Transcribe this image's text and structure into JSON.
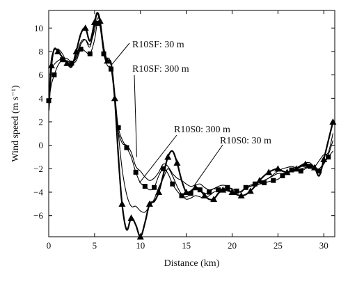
{
  "chart_data": {
    "type": "line",
    "title": "",
    "xlabel": "Distance (km)",
    "ylabel": "Wind speed (m s⁻¹)",
    "xlim": [
      0,
      31.2
    ],
    "ylim": [
      -7.8,
      11.5
    ],
    "xticks": [
      0,
      5,
      10,
      15,
      20,
      25,
      30
    ],
    "yticks": [
      -6,
      -4,
      -2,
      0,
      2,
      4,
      6,
      8,
      10
    ],
    "grid": false,
    "legend": "none",
    "series": [
      {
        "name": "R10SF: 30 m",
        "color": "#000000",
        "width": 1.1,
        "marker": "none",
        "x": [
          0,
          0.2,
          0.5,
          1,
          1.5,
          2,
          2.5,
          3,
          3.5,
          4,
          4.5,
          5,
          5.3,
          5.6,
          6,
          6.3,
          6.6,
          7,
          7.2,
          7.5,
          8,
          8.5,
          9,
          9.5,
          10,
          10.5,
          11,
          11.5,
          12,
          12.5,
          13,
          13.5,
          14,
          14.5,
          15,
          15.5,
          16,
          16.5,
          17,
          17.5,
          18,
          18.5,
          19,
          19.5,
          20,
          20.5,
          21,
          21.5,
          22,
          22.5,
          23,
          23.5,
          24,
          24.5,
          25,
          25.5,
          26,
          26.5,
          27,
          27.5,
          28,
          28.5,
          29,
          29.5,
          30,
          30.5,
          31
        ],
        "y": [
          3.5,
          6.8,
          8.0,
          8.2,
          7.8,
          7.0,
          6.8,
          7.6,
          8.8,
          9.0,
          8.4,
          10.2,
          11.2,
          10.3,
          8.0,
          7.2,
          7.4,
          6.0,
          4.0,
          1.5,
          0.2,
          0.0,
          -0.6,
          -1.8,
          -2.2,
          -2.7,
          -3.0,
          -2.8,
          -2.3,
          -1.6,
          -1.8,
          -2.4,
          -2.8,
          -3.0,
          -3.3,
          -3.5,
          -3.4,
          -3.3,
          -3.6,
          -3.8,
          -3.7,
          -3.5,
          -3.4,
          -3.5,
          -3.8,
          -4.0,
          -3.9,
          -3.6,
          -3.5,
          -3.4,
          -3.3,
          -3.0,
          -2.8,
          -2.5,
          -2.2,
          -2.0,
          -1.9,
          -1.8,
          -1.9,
          -1.7,
          -1.5,
          -1.5,
          -1.8,
          -1.3,
          -0.8,
          -0.6,
          1.0
        ]
      },
      {
        "name": "R10SF: 300 m",
        "color": "#000000",
        "width": 1.1,
        "marker": "square",
        "x": [
          0,
          0.3,
          0.6,
          1,
          1.5,
          2,
          2.5,
          3,
          3.5,
          4,
          4.5,
          5,
          5.3,
          5.6,
          6,
          6.4,
          6.8,
          7.2,
          7.6,
          8,
          8.5,
          9,
          9.5,
          10,
          10.5,
          11,
          11.5,
          12,
          12.5,
          13,
          13.5,
          14,
          14.5,
          15,
          15.5,
          16,
          16.5,
          17,
          17.5,
          18,
          18.5,
          19,
          19.5,
          20,
          20.5,
          21,
          21.5,
          22,
          22.5,
          23,
          23.5,
          24,
          24.5,
          25,
          25.5,
          26,
          26.5,
          27,
          27.5,
          28,
          28.5,
          29,
          29.5,
          30,
          30.5,
          31
        ],
        "y": [
          3.8,
          5.2,
          6.0,
          6.8,
          7.3,
          7.2,
          7.0,
          7.2,
          8.2,
          8.0,
          7.8,
          9.0,
          10.4,
          10.1,
          7.8,
          6.8,
          6.5,
          4.0,
          1.5,
          0.5,
          -0.2,
          -1.0,
          -2.3,
          -3.2,
          -3.5,
          -3.8,
          -3.6,
          -2.6,
          -2.0,
          -2.4,
          -3.3,
          -3.9,
          -4.3,
          -4.4,
          -4.1,
          -3.6,
          -3.8,
          -4.1,
          -4.0,
          -3.7,
          -3.8,
          -3.7,
          -3.6,
          -3.7,
          -3.9,
          -4.0,
          -3.6,
          -3.4,
          -3.3,
          -3.3,
          -3.2,
          -3.1,
          -3.0,
          -2.9,
          -2.6,
          -2.3,
          -2.1,
          -2.0,
          -2.2,
          -2.0,
          -1.8,
          -1.9,
          -2.2,
          -1.6,
          -1.0,
          -0.5
        ]
      },
      {
        "name": "R10S0: 300 m",
        "color": "#000000",
        "width": 1.1,
        "marker": "none",
        "x": [
          0,
          0.3,
          0.6,
          1,
          1.5,
          2,
          2.5,
          3,
          3.5,
          4,
          4.5,
          5,
          5.3,
          5.6,
          6,
          6.4,
          6.8,
          7.2,
          7.6,
          8,
          8.5,
          9,
          9.5,
          10,
          10.5,
          11,
          11.5,
          12,
          12.5,
          13,
          13.5,
          14,
          14.5,
          15,
          15.5,
          16,
          16.5,
          17,
          17.5,
          18,
          18.5,
          19,
          19.5,
          20,
          20.5,
          21,
          21.5,
          22,
          22.5,
          23,
          23.5,
          24,
          24.5,
          25,
          25.5,
          26,
          26.5,
          27,
          27.5,
          28,
          28.5,
          29,
          29.5,
          30,
          30.5,
          31
        ],
        "y": [
          4.0,
          6.4,
          6.9,
          7.2,
          7.4,
          7.4,
          7.1,
          7.4,
          8.6,
          9.0,
          8.6,
          9.8,
          10.8,
          10.5,
          8.4,
          7.2,
          6.8,
          4.5,
          1.0,
          -2.0,
          -4.2,
          -5.2,
          -5.2,
          -5.6,
          -5.7,
          -5.2,
          -4.6,
          -3.6,
          -2.8,
          -2.0,
          -2.6,
          -3.5,
          -4.2,
          -4.6,
          -4.5,
          -4.3,
          -4.4,
          -4.5,
          -4.3,
          -4.0,
          -3.9,
          -3.8,
          -3.9,
          -4.0,
          -4.1,
          -3.9,
          -3.7,
          -3.5,
          -3.3,
          -3.1,
          -3.0,
          -2.8,
          -2.6,
          -2.4,
          -2.4,
          -2.3,
          -2.2,
          -2.1,
          -2.0,
          -1.9,
          -1.8,
          -1.9,
          -2.0,
          -1.5,
          -0.8,
          0.4
        ]
      },
      {
        "name": "R10S0: 30 m",
        "color": "#000000",
        "width": 2.2,
        "marker": "triangle",
        "x": [
          0,
          0.3,
          0.6,
          1,
          1.5,
          2,
          2.5,
          3,
          3.5,
          4,
          4.5,
          5,
          5.3,
          5.6,
          6,
          6.4,
          6.8,
          7.2,
          7.6,
          8,
          8.5,
          9,
          9.5,
          10,
          10.5,
          11,
          11.5,
          12,
          12.5,
          13,
          13.5,
          14,
          14.5,
          15,
          15.5,
          16,
          16.5,
          17,
          17.5,
          18,
          18.5,
          19,
          19.5,
          20,
          20.5,
          21,
          21.5,
          22,
          22.5,
          23,
          23.5,
          24,
          24.5,
          25,
          25.5,
          26,
          26.5,
          27,
          27.5,
          28,
          28.5,
          29,
          29.5,
          30,
          30.5,
          31
        ],
        "y": [
          3.0,
          6.8,
          8.2,
          8.0,
          7.5,
          7.0,
          6.7,
          8.0,
          9.5,
          10.0,
          8.9,
          10.5,
          11.3,
          10.6,
          8.2,
          7.2,
          7.0,
          4.0,
          -1.0,
          -5.0,
          -7.2,
          -6.2,
          -6.8,
          -7.8,
          -6.6,
          -5.0,
          -4.8,
          -4.0,
          -2.5,
          -1.0,
          -0.5,
          -1.5,
          -3.0,
          -4.0,
          -3.9,
          -3.6,
          -3.8,
          -4.3,
          -4.6,
          -4.6,
          -4.1,
          -3.8,
          -3.8,
          -4.0,
          -4.2,
          -4.3,
          -4.2,
          -3.9,
          -3.5,
          -3.0,
          -2.6,
          -2.3,
          -2.1,
          -2.0,
          -2.2,
          -2.3,
          -2.2,
          -2.0,
          -1.8,
          -1.6,
          -1.7,
          -1.9,
          -2.6,
          -1.2,
          0.4,
          2.0
        ]
      }
    ],
    "annotations": [
      {
        "text": "R10SF: 30 m",
        "target": [
          6.9,
          6.9
        ]
      },
      {
        "text": "R10SF: 300 m",
        "target": [
          9.6,
          -1.0
        ]
      },
      {
        "text": "R10S0: 300 m",
        "target": [
          9.9,
          -3.2
        ]
      },
      {
        "text": "R10S0: 30 m",
        "target": [
          15.9,
          -3.4
        ]
      }
    ]
  }
}
